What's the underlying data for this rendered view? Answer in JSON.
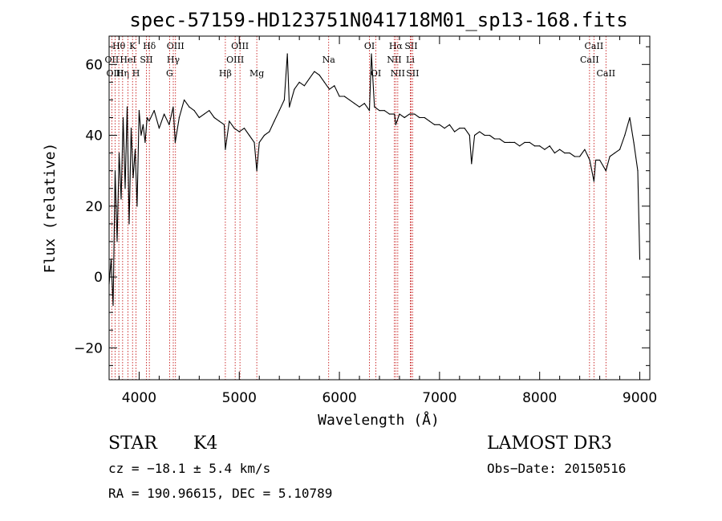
{
  "chart_data": {
    "type": "line",
    "title": "spec-57159-HD123751N041718M01_sp13-168.fits",
    "xlabel": "Wavelength (Å)",
    "ylabel": "Flux (relative)",
    "xlim": [
      3700,
      9100
    ],
    "ylim": [
      -29,
      68
    ],
    "xticks": [
      4000,
      5000,
      6000,
      7000,
      8000,
      9000
    ],
    "yticks": [
      -20,
      0,
      20,
      40,
      60
    ],
    "grid": false,
    "series": [
      {
        "name": "flux",
        "x": [
          3700,
          3720,
          3740,
          3760,
          3780,
          3800,
          3820,
          3840,
          3860,
          3880,
          3900,
          3920,
          3940,
          3960,
          3980,
          4000,
          4020,
          4040,
          4060,
          4080,
          4100,
          4150,
          4200,
          4250,
          4300,
          4340,
          4360,
          4400,
          4450,
          4500,
          4550,
          4600,
          4650,
          4700,
          4750,
          4800,
          4850,
          4861,
          4900,
          4950,
          5000,
          5050,
          5100,
          5150,
          5175,
          5200,
          5250,
          5300,
          5350,
          5400,
          5450,
          5480,
          5500,
          5550,
          5600,
          5650,
          5700,
          5750,
          5800,
          5850,
          5900,
          5950,
          6000,
          6050,
          6100,
          6150,
          6200,
          6250,
          6300,
          6320,
          6350,
          6400,
          6450,
          6500,
          6550,
          6563,
          6600,
          6650,
          6700,
          6750,
          6800,
          6850,
          6900,
          6950,
          7000,
          7050,
          7100,
          7150,
          7200,
          7250,
          7300,
          7320,
          7350,
          7400,
          7450,
          7500,
          7550,
          7600,
          7650,
          7700,
          7750,
          7800,
          7850,
          7900,
          7950,
          8000,
          8050,
          8100,
          8150,
          8200,
          8250,
          8300,
          8350,
          8400,
          8450,
          8500,
          8542,
          8560,
          8600,
          8662,
          8700,
          8750,
          8800,
          8850,
          8900,
          8940,
          8980,
          9000
        ],
        "values": [
          -2,
          5,
          -8,
          30,
          10,
          35,
          22,
          45,
          25,
          48,
          15,
          42,
          28,
          36,
          20,
          47,
          40,
          43,
          38,
          45,
          44,
          47,
          42,
          46,
          43,
          48,
          38,
          45,
          50,
          48,
          47,
          45,
          46,
          47,
          45,
          44,
          43,
          36,
          44,
          42,
          41,
          42,
          40,
          38,
          30,
          38,
          40,
          41,
          44,
          47,
          50,
          63,
          48,
          53,
          55,
          54,
          56,
          58,
          57,
          55,
          53,
          54,
          51,
          51,
          50,
          49,
          48,
          49,
          47,
          63,
          48,
          47,
          47,
          46,
          46,
          43,
          46,
          45,
          46,
          46,
          45,
          45,
          44,
          43,
          43,
          42,
          43,
          41,
          42,
          42,
          40,
          32,
          40,
          41,
          40,
          40,
          39,
          39,
          38,
          38,
          38,
          37,
          38,
          38,
          37,
          37,
          36,
          37,
          35,
          36,
          35,
          35,
          34,
          34,
          36,
          33,
          27,
          33,
          33,
          30,
          34,
          35,
          36,
          40,
          45,
          38,
          30,
          5
        ]
      }
    ],
    "lines": [
      {
        "name": "Hθ",
        "x": 3797,
        "row": 0
      },
      {
        "name": "OII",
        "x": 3727,
        "row": 1
      },
      {
        "name": "OIII",
        "x": 3760,
        "row": 2
      },
      {
        "name": "Hη",
        "x": 3835,
        "row": 2
      },
      {
        "name": "K",
        "x": 3934,
        "row": 0
      },
      {
        "name": "HeI",
        "x": 3889,
        "row": 1
      },
      {
        "name": "H",
        "x": 3969,
        "row": 2
      },
      {
        "name": "Hδ",
        "x": 4102,
        "row": 0
      },
      {
        "name": "SII",
        "x": 4072,
        "row": 1
      },
      {
        "name": "OIII",
        "x": 4363,
        "row": 0
      },
      {
        "name": "Hγ",
        "x": 4341,
        "row": 1
      },
      {
        "name": "G",
        "x": 4304,
        "row": 2
      },
      {
        "name": "OIII",
        "x": 5007,
        "row": 0
      },
      {
        "name": "OIII",
        "x": 4959,
        "row": 1
      },
      {
        "name": "Hβ",
        "x": 4861,
        "row": 2
      },
      {
        "name": "Mg",
        "x": 5175,
        "row": 2
      },
      {
        "name": "Na",
        "x": 5893,
        "row": 1
      },
      {
        "name": "OI",
        "x": 6300,
        "row": 0
      },
      {
        "name": "OI",
        "x": 6364,
        "row": 2
      },
      {
        "name": "Hα",
        "x": 6563,
        "row": 0
      },
      {
        "name": "NII",
        "x": 6548,
        "row": 1
      },
      {
        "name": "NII",
        "x": 6583,
        "row": 2
      },
      {
        "name": "SII",
        "x": 6716,
        "row": 0
      },
      {
        "name": "Li",
        "x": 6708,
        "row": 1
      },
      {
        "name": "SII",
        "x": 6731,
        "row": 2
      },
      {
        "name": "CaII",
        "x": 8542,
        "row": 0
      },
      {
        "name": "CaII",
        "x": 8498,
        "row": 1
      },
      {
        "name": "CaII",
        "x": 8662,
        "row": 2
      }
    ]
  },
  "info": {
    "class": "STAR",
    "subclass": "K4",
    "survey": "LAMOST DR3",
    "cz": "cz = −18.1 ± 5.4 km/s",
    "obs_date": "Obs−Date: 20150516",
    "radec": "RA = 190.96615, DEC =    5.10789"
  }
}
